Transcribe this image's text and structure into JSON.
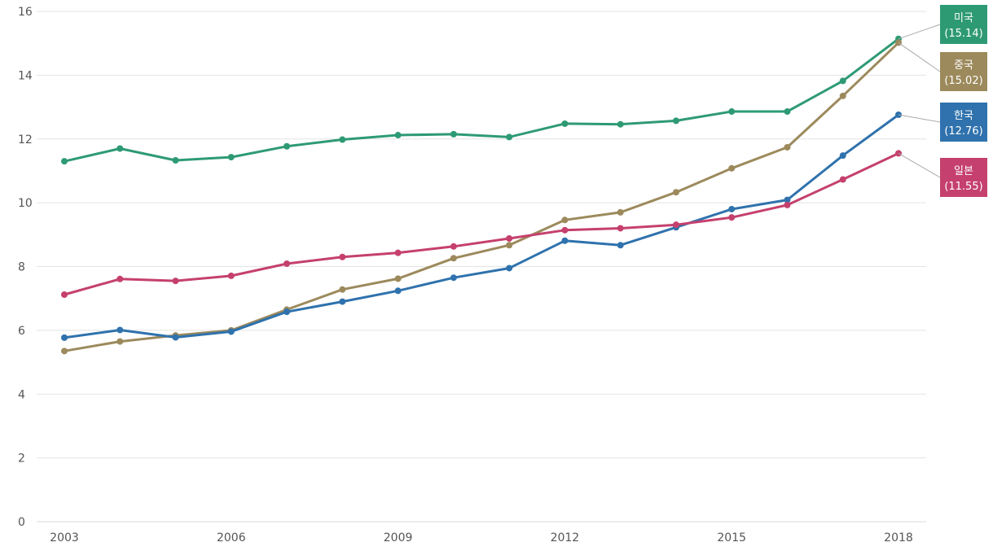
{
  "chart_data": {
    "type": "line",
    "title": "",
    "xlabel": "",
    "ylabel": "",
    "x": [
      2003,
      2004,
      2005,
      2006,
      2007,
      2008,
      2009,
      2010,
      2011,
      2012,
      2013,
      2014,
      2015,
      2016,
      2017,
      2018
    ],
    "xticks": [
      "2003",
      "2006",
      "2009",
      "2012",
      "2015",
      "2018"
    ],
    "yticks": [
      "0",
      "2",
      "4",
      "6",
      "8",
      "10",
      "12",
      "14",
      "16"
    ],
    "ylim": [
      0,
      16
    ],
    "grid": true,
    "series": [
      {
        "name": "미국",
        "end_label": "(15.14)",
        "color": "#2e9a74",
        "values": [
          11.3,
          11.7,
          11.33,
          11.43,
          11.77,
          11.98,
          12.12,
          12.15,
          12.06,
          12.48,
          12.46,
          12.57,
          12.86,
          12.86,
          13.82,
          15.14
        ]
      },
      {
        "name": "중국",
        "end_label": "(15.02)",
        "color": "#9c8a5c",
        "values": [
          5.35,
          5.65,
          5.84,
          6.0,
          6.65,
          7.28,
          7.62,
          8.26,
          8.67,
          9.46,
          9.7,
          10.33,
          11.08,
          11.74,
          13.35,
          15.02
        ]
      },
      {
        "name": "한국",
        "end_label": "(12.76)",
        "color": "#2f72ad",
        "values": [
          5.77,
          6.01,
          5.78,
          5.96,
          6.58,
          6.9,
          7.24,
          7.65,
          7.95,
          8.81,
          8.67,
          9.23,
          9.8,
          10.09,
          11.48,
          12.76
        ]
      },
      {
        "name": "일본",
        "end_label": "(11.55)",
        "color": "#c5406e",
        "values": [
          7.12,
          7.61,
          7.55,
          7.71,
          8.09,
          8.3,
          8.43,
          8.63,
          8.88,
          9.14,
          9.2,
          9.31,
          9.54,
          9.93,
          10.73,
          11.55
        ]
      }
    ]
  }
}
